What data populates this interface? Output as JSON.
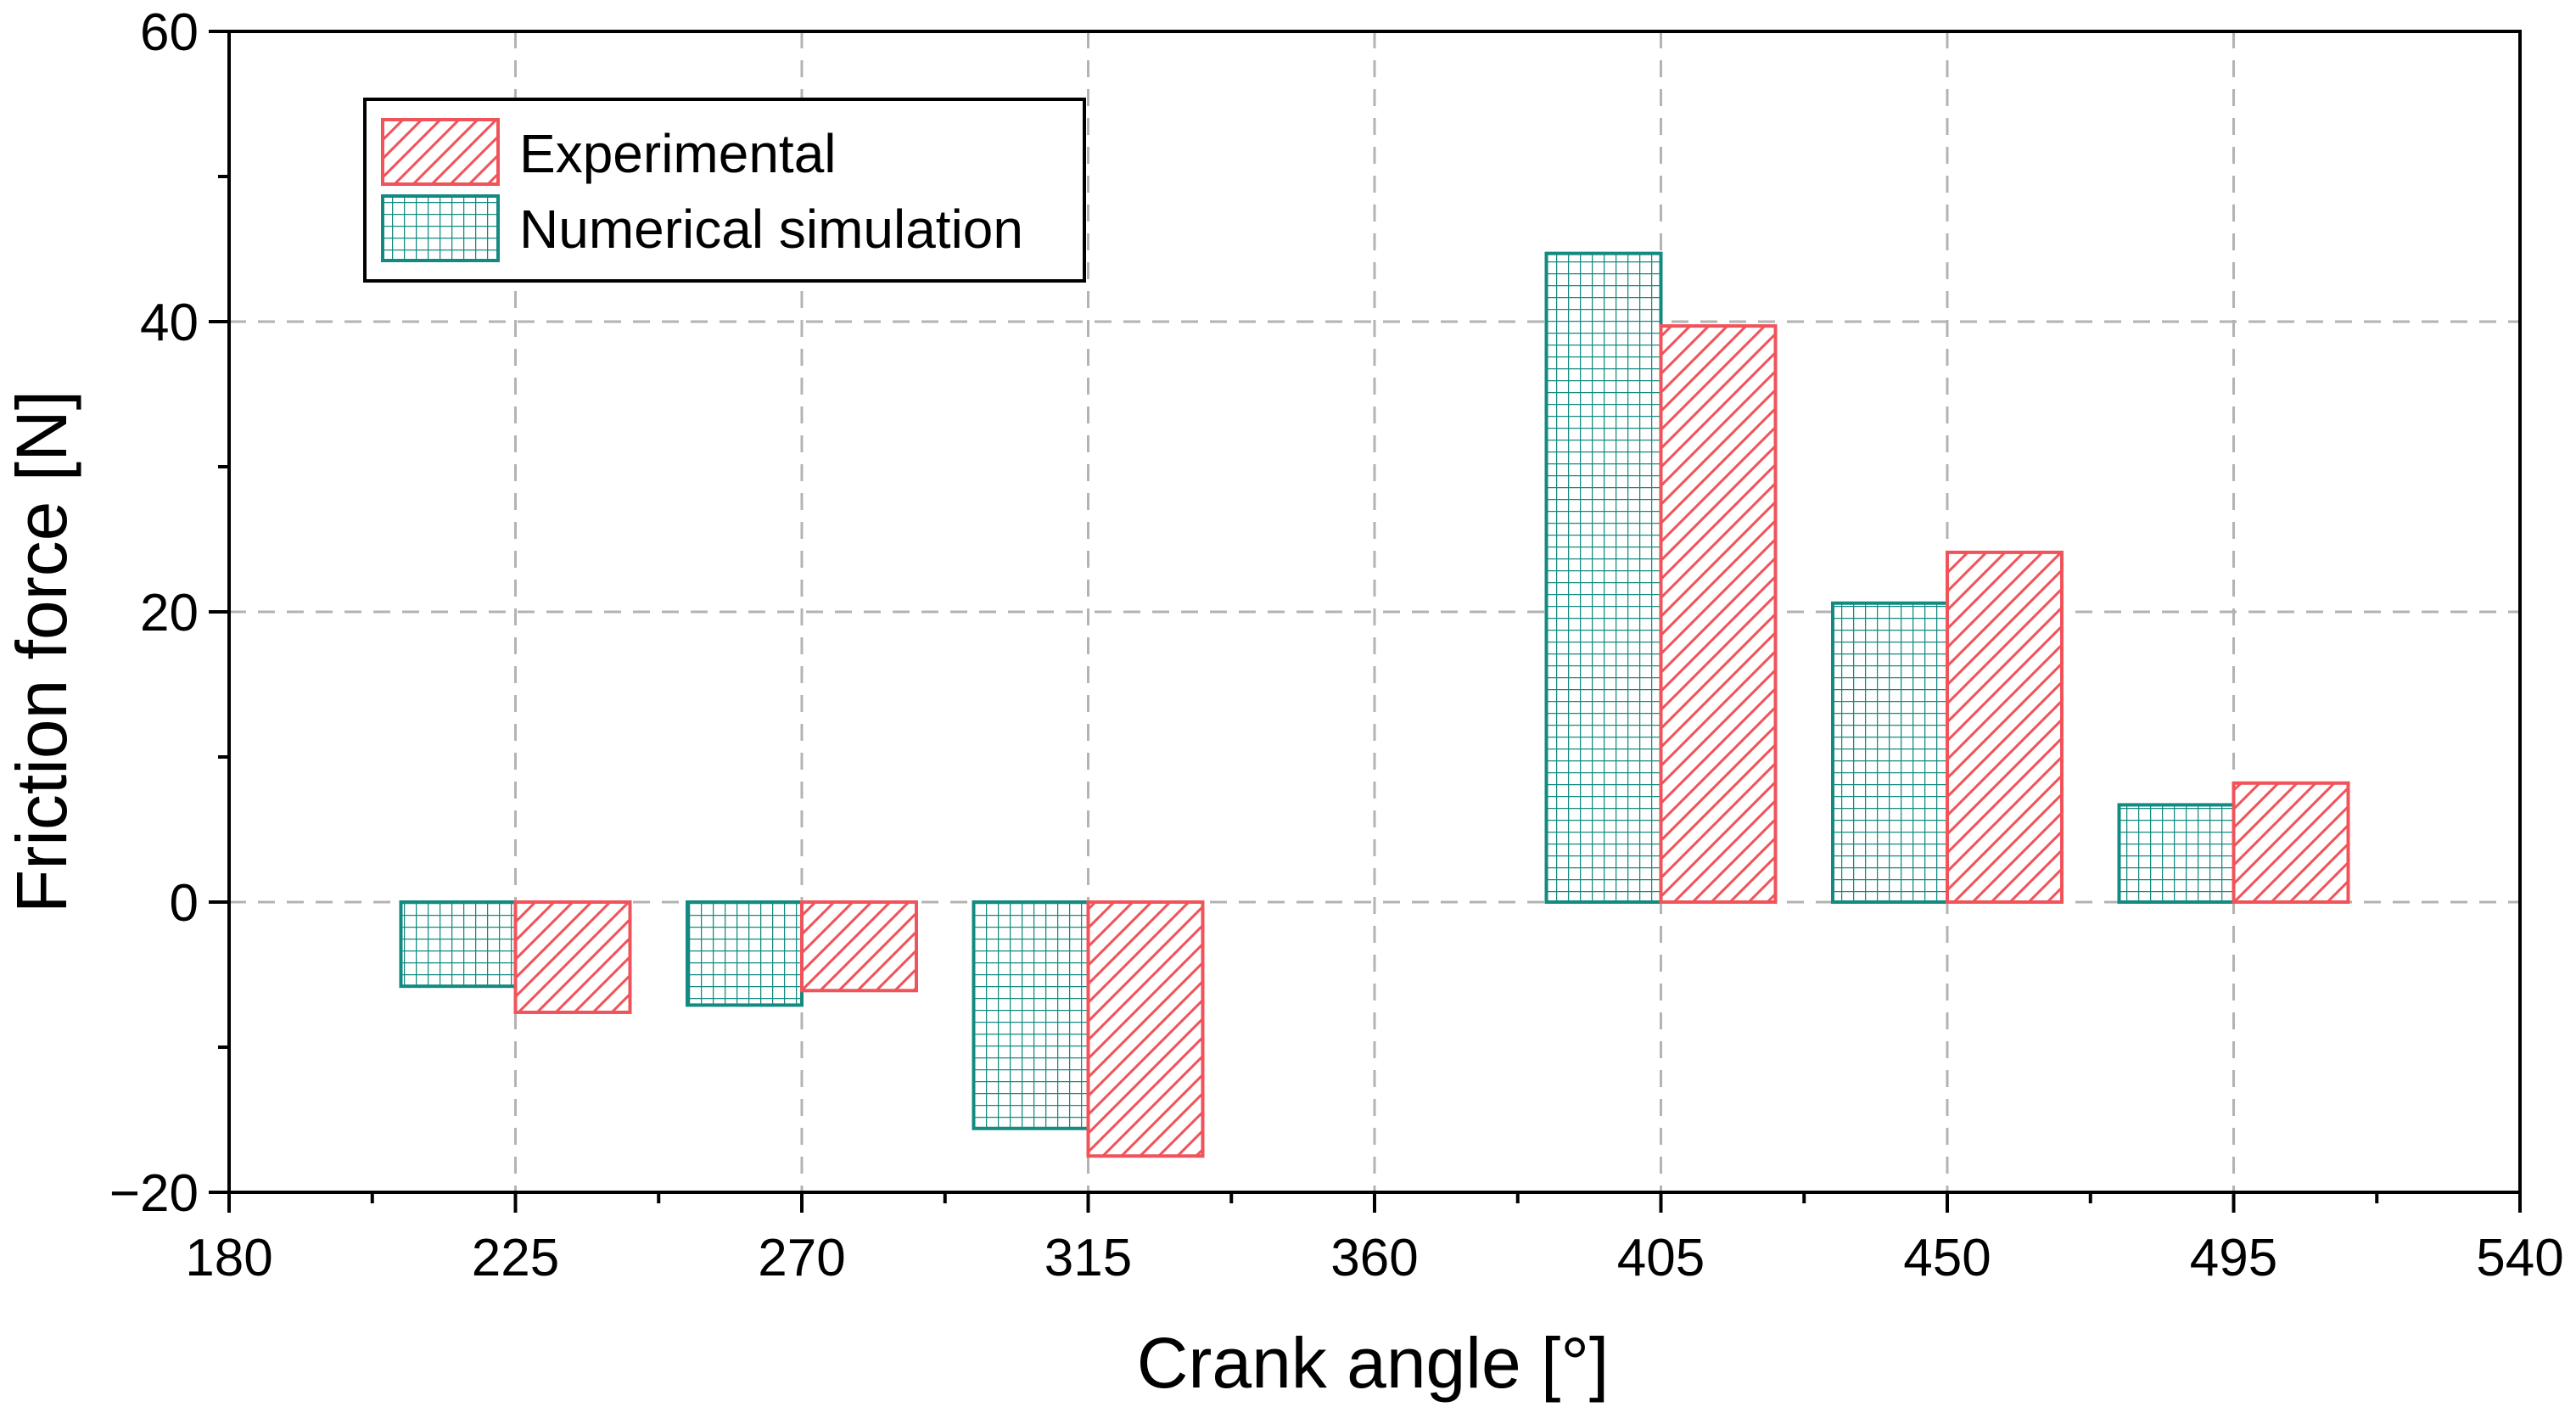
{
  "chart_data": {
    "type": "bar",
    "title": "",
    "xlabel": "Crank angle [°]",
    "ylabel": "Friction force [N]",
    "xlim": [
      180,
      540
    ],
    "ylim": [
      -20,
      60
    ],
    "x_ticks": [
      "180",
      "225",
      "270",
      "315",
      "360",
      "405",
      "450",
      "495",
      "540"
    ],
    "x_tick_values": [
      180,
      225,
      270,
      315,
      360,
      405,
      450,
      495,
      540
    ],
    "y_ticks": [
      "−20",
      "0",
      "20",
      "40",
      "60"
    ],
    "y_tick_values": [
      -20,
      0,
      20,
      40,
      60
    ],
    "grid": true,
    "legend_position": "top-left",
    "categories": [
      225,
      270,
      315,
      405,
      450,
      495
    ],
    "series": [
      {
        "name": "Numerical simulation",
        "color": "#138a80",
        "pattern": "grid",
        "side": "left",
        "values": [
          -5.8,
          -7.1,
          -15.6,
          44.7,
          20.6,
          6.7
        ]
      },
      {
        "name": "Experimental",
        "color": "#f0535a",
        "pattern": "diagonal",
        "side": "right",
        "values": [
          -7.6,
          -6.1,
          -17.5,
          39.7,
          24.1,
          8.2
        ]
      }
    ],
    "legend": [
      "Experimental",
      "Numerical simulation"
    ]
  }
}
